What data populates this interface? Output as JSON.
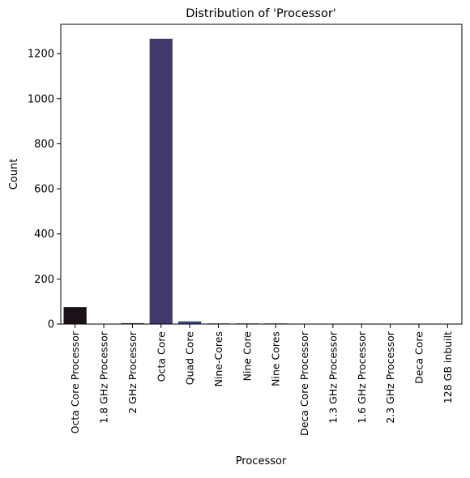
{
  "chart_data": {
    "type": "bar",
    "title": "Distribution of 'Processor'",
    "xlabel": "Processor",
    "ylabel": "Count",
    "categories": [
      "Octa Core Processor",
      "1.8 GHz Processor",
      "2 GHz Processor",
      "Octa Core",
      "Quad Core",
      "Nine-Cores",
      "Nine Core",
      "Nine Cores",
      "Deca Core Processor",
      "1.3 GHz Processor",
      "1.6 GHz Processor",
      "2.3 GHz Processor",
      "Deca Core",
      "128 GB inbuilt"
    ],
    "values": [
      75,
      1,
      4,
      1266,
      12,
      3,
      3,
      3,
      1,
      1,
      2,
      1,
      2,
      1
    ],
    "colors": [
      "#1b1118",
      "#2a1c2e",
      "#35244a",
      "#413a6b",
      "#3c4a78",
      "#36597f",
      "#326683",
      "#2e7286",
      "#2b7f88",
      "#298b88",
      "#2a9886",
      "#2ea47f",
      "#36b074",
      "#45bb67"
    ],
    "ylim": [
      0,
      1330
    ],
    "yticks": [
      0,
      200,
      400,
      600,
      800,
      1000,
      1200
    ],
    "grid": false,
    "legend": "none"
  }
}
